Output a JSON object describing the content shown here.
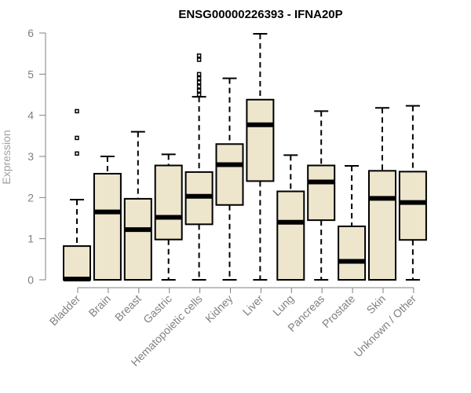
{
  "chart_data": {
    "type": "boxplot",
    "title": "ENSG00000226393 - IFNA20P",
    "xlabel": "",
    "ylabel": "Expression",
    "ylim": [
      0,
      6
    ],
    "yticks": [
      "0",
      "1",
      "2",
      "3",
      "4",
      "5",
      "6"
    ],
    "grid": false,
    "colors": {
      "box_fill": "#ede6cc",
      "stroke": "#000000",
      "axis": "#808080"
    },
    "categories": [
      "Bladder",
      "Brain",
      "Breast",
      "Gastric",
      "Hematopoietic cells",
      "Kidney",
      "Liver",
      "Lung",
      "Pancreas",
      "Prostate",
      "Skin",
      "Unknown / Other"
    ],
    "boxes": [
      {
        "name": "Bladder",
        "min": 0,
        "q1": 0,
        "median": 0.02,
        "q3": 0.82,
        "max": 1.95,
        "outliers": [
          3.07,
          3.45,
          4.1
        ]
      },
      {
        "name": "Brain",
        "min": 0,
        "q1": 0,
        "median": 1.65,
        "q3": 2.58,
        "max": 3.0,
        "outliers": []
      },
      {
        "name": "Breast",
        "min": 0,
        "q1": 0,
        "median": 1.22,
        "q3": 1.97,
        "max": 3.6,
        "outliers": []
      },
      {
        "name": "Gastric",
        "min": 0,
        "q1": 0.98,
        "median": 1.52,
        "q3": 2.78,
        "max": 3.05,
        "outliers": []
      },
      {
        "name": "Hematopoietic cells",
        "min": 0,
        "q1": 1.35,
        "median": 2.03,
        "q3": 2.62,
        "max": 4.45,
        "outliers": [
          4.5,
          4.6,
          4.7,
          4.8,
          4.9,
          5.0,
          5.35,
          5.45
        ]
      },
      {
        "name": "Kidney",
        "min": 0,
        "q1": 1.82,
        "median": 2.8,
        "q3": 3.3,
        "max": 4.9,
        "outliers": []
      },
      {
        "name": "Liver",
        "min": 0,
        "q1": 2.4,
        "median": 3.77,
        "q3": 4.38,
        "max": 5.98,
        "outliers": []
      },
      {
        "name": "Lung",
        "min": 0,
        "q1": 0,
        "median": 1.4,
        "q3": 2.15,
        "max": 3.03,
        "outliers": []
      },
      {
        "name": "Pancreas",
        "min": 0,
        "q1": 1.45,
        "median": 2.38,
        "q3": 2.78,
        "max": 4.1,
        "outliers": []
      },
      {
        "name": "Prostate",
        "min": 0,
        "q1": 0,
        "median": 0.45,
        "q3": 1.3,
        "max": 2.77,
        "outliers": []
      },
      {
        "name": "Skin",
        "min": 0,
        "q1": 0,
        "median": 1.98,
        "q3": 2.65,
        "max": 4.18,
        "outliers": []
      },
      {
        "name": "Unknown / Other",
        "min": 0,
        "q1": 0.97,
        "median": 1.88,
        "q3": 2.63,
        "max": 4.23,
        "outliers": []
      }
    ]
  }
}
